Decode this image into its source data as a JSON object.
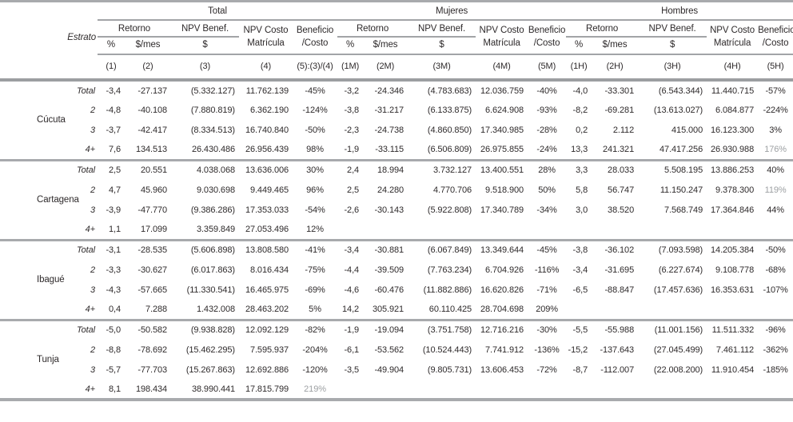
{
  "table": {
    "col_groups": [
      "Total",
      "Mujeres",
      "Hombres"
    ],
    "headers": {
      "estrato": "Estrato",
      "retorno": "Retorno",
      "pct": "%",
      "per_month": "$/mes",
      "npv_benef": "NPV Benef.",
      "dollar": "$",
      "npv_costo_l1": "NPV Costo",
      "npv_costo_l2": "Matrícula",
      "beneficio_l1": "Beneficio",
      "beneficio_l2": "/Costo"
    },
    "col_numbers": [
      "(1)",
      "(2)",
      "(3)",
      "(4)",
      "(5):(3)/(4)",
      "(1M)",
      "(2M)",
      "(3M)",
      "(4M)",
      "(5M)",
      "(1H)",
      "(2H)",
      "(3H)",
      "(4H)",
      "(5H)"
    ],
    "colors": {
      "text": "#2e2a2b",
      "muted_text": "#9da0a3",
      "rule_grey": "#a8aaad",
      "thin_rule_grey": "#a2a4a7"
    },
    "groups": [
      {
        "city": "Cúcuta",
        "rows": [
          {
            "estrato": "Total",
            "cells": [
              "-3,4",
              "-27.137",
              "(5.332.127)",
              "11.762.139",
              "-45%",
              "-3,2",
              "-24.346",
              "(4.783.683)",
              "12.036.759",
              "-40%",
              "-4,0",
              "-33.301",
              "(6.543.344)",
              "11.440.715",
              "-57%"
            ]
          },
          {
            "estrato": "2",
            "cells": [
              "-4,8",
              "-40.108",
              "(7.880.819)",
              "6.362.190",
              "-124%",
              "-3,8",
              "-31.217",
              "(6.133.875)",
              "6.624.908",
              "-93%",
              "-8,2",
              "-69.281",
              "(13.613.027)",
              "6.084.877",
              "-224%"
            ]
          },
          {
            "estrato": "3",
            "cells": [
              "-3,7",
              "-42.417",
              "(8.334.513)",
              "16.740.840",
              "-50%",
              "-2,3",
              "-24.738",
              "(4.860.850)",
              "17.340.985",
              "-28%",
              "0,2",
              "2.112",
              "415.000",
              "16.123.300",
              "3%"
            ]
          },
          {
            "estrato": "4+",
            "cells": [
              "7,6",
              "134.513",
              "26.430.486",
              "26.956.439",
              "98%",
              "-1,9",
              "-33.115",
              "(6.506.809)",
              "26.975.855",
              "-24%",
              "13,3",
              "241.321",
              "47.417.256",
              "26.930.988",
              "176%"
            ],
            "muted": [
              14
            ]
          }
        ]
      },
      {
        "city": "Cartagena",
        "rows": [
          {
            "estrato": "Total",
            "cells": [
              "2,5",
              "20.551",
              "4.038.068",
              "13.636.006",
              "30%",
              "2,4",
              "18.994",
              "3.732.127",
              "13.400.551",
              "28%",
              "3,3",
              "28.033",
              "5.508.195",
              "13.886.253",
              "40%"
            ]
          },
          {
            "estrato": "2",
            "cells": [
              "4,7",
              "45.960",
              "9.030.698",
              "9.449.465",
              "96%",
              "2,5",
              "24.280",
              "4.770.706",
              "9.518.900",
              "50%",
              "5,8",
              "56.747",
              "11.150.247",
              "9.378.300",
              "119%"
            ],
            "muted": [
              14
            ]
          },
          {
            "estrato": "3",
            "cells": [
              "-3,9",
              "-47.770",
              "(9.386.286)",
              "17.353.033",
              "-54%",
              "-2,6",
              "-30.143",
              "(5.922.808)",
              "17.340.789",
              "-34%",
              "3,0",
              "38.520",
              "7.568.749",
              "17.364.846",
              "44%"
            ]
          },
          {
            "estrato": "4+",
            "cells": [
              "1,1",
              "17.099",
              "3.359.849",
              "27.053.496",
              "12%",
              "",
              "",
              "",
              "",
              "",
              "",
              "",
              "",
              "",
              ""
            ]
          }
        ]
      },
      {
        "city": "Ibagué",
        "rows": [
          {
            "estrato": "Total",
            "cells": [
              "-3,1",
              "-28.535",
              "(5.606.898)",
              "13.808.580",
              "-41%",
              "-3,4",
              "-30.881",
              "(6.067.849)",
              "13.349.644",
              "-45%",
              "-3,8",
              "-36.102",
              "(7.093.598)",
              "14.205.384",
              "-50%"
            ]
          },
          {
            "estrato": "2",
            "cells": [
              "-3,3",
              "-30.627",
              "(6.017.863)",
              "8.016.434",
              "-75%",
              "-4,4",
              "-39.509",
              "(7.763.234)",
              "6.704.926",
              "-116%",
              "-3,4",
              "-31.695",
              "(6.227.674)",
              "9.108.778",
              "-68%"
            ]
          },
          {
            "estrato": "3",
            "cells": [
              "-4,3",
              "-57.665",
              "(11.330.541)",
              "16.465.975",
              "-69%",
              "-4,6",
              "-60.476",
              "(11.882.886)",
              "16.620.826",
              "-71%",
              "-6,5",
              "-88.847",
              "(17.457.636)",
              "16.353.631",
              "-107%"
            ]
          },
          {
            "estrato": "4+",
            "cells": [
              "0,4",
              "7.288",
              "1.432.008",
              "28.463.202",
              "5%",
              "14,2",
              "305.921",
              "60.110.425",
              "28.704.698",
              "209%",
              "",
              "",
              "",
              "",
              ""
            ]
          }
        ]
      },
      {
        "city": "Tunja",
        "rows": [
          {
            "estrato": "Total",
            "cells": [
              "-5,0",
              "-50.582",
              "(9.938.828)",
              "12.092.129",
              "-82%",
              "-1,9",
              "-19.094",
              "(3.751.758)",
              "12.716.216",
              "-30%",
              "-5,5",
              "-55.988",
              "(11.001.156)",
              "11.511.332",
              "-96%"
            ]
          },
          {
            "estrato": "2",
            "cells": [
              "-8,8",
              "-78.692",
              "(15.462.295)",
              "7.595.937",
              "-204%",
              "-6,1",
              "-53.562",
              "(10.524.443)",
              "7.741.912",
              "-136%",
              "-15,2",
              "-137.643",
              "(27.045.499)",
              "7.461.112",
              "-362%"
            ]
          },
          {
            "estrato": "3",
            "cells": [
              "-5,7",
              "-77.703",
              "(15.267.863)",
              "12.692.886",
              "-120%",
              "-3,5",
              "-49.904",
              "(9.805.731)",
              "13.606.453",
              "-72%",
              "-8,7",
              "-112.007",
              "(22.008.200)",
              "11.910.454",
              "-185%"
            ]
          },
          {
            "estrato": "4+",
            "cells": [
              "8,1",
              "198.434",
              "38.990.441",
              "17.815.799",
              "219%",
              "",
              "",
              "",
              "",
              "",
              "",
              "",
              "",
              "",
              ""
            ],
            "muted": [
              4
            ]
          }
        ]
      }
    ]
  }
}
